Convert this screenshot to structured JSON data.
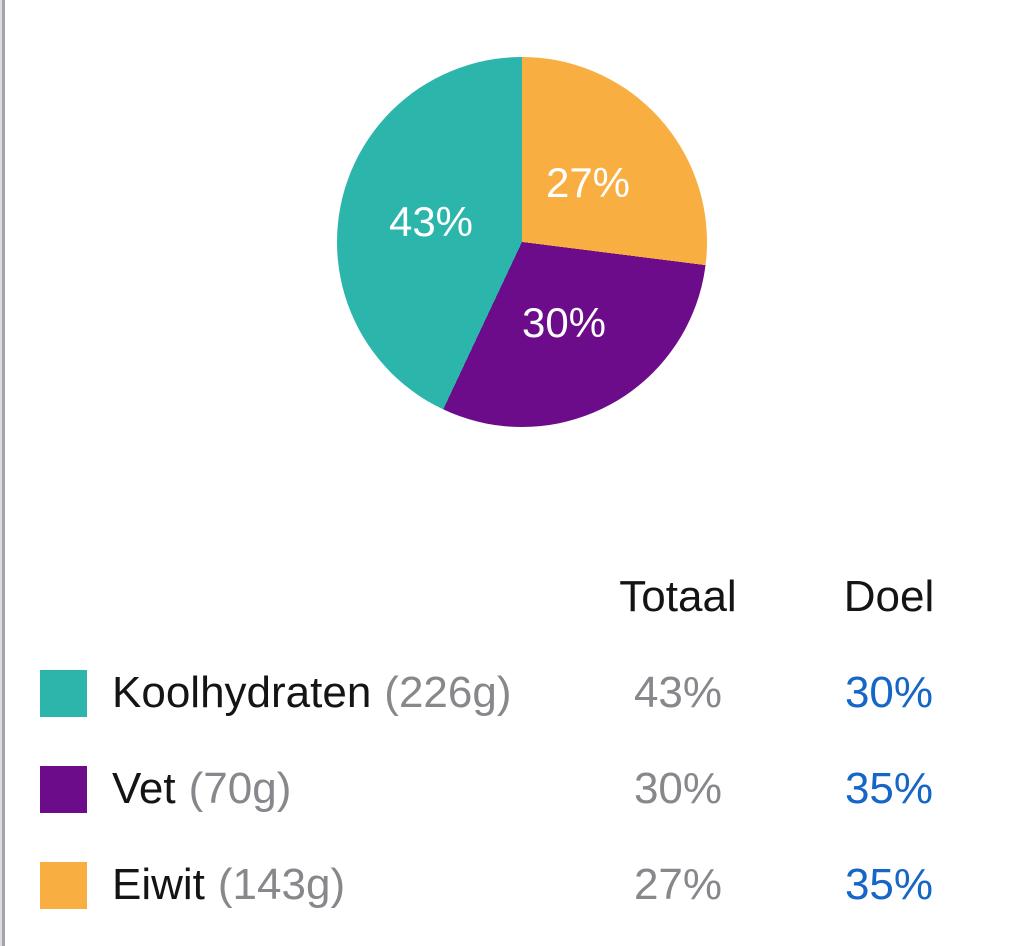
{
  "chart_data": {
    "type": "pie",
    "slice_order": "clockwise-from-12-oclock",
    "slices": [
      {
        "label": "Eiwit",
        "value": 27,
        "display": "27%",
        "color": "#F9AE41"
      },
      {
        "label": "Vet",
        "value": 30,
        "display": "30%",
        "color": "#6D0C8B"
      },
      {
        "label": "Koolhydraten",
        "value": 43,
        "display": "43%",
        "color": "#2BB5AB"
      }
    ],
    "label_text_color": "#FFFFFF",
    "title": "",
    "legend_position": "table-below"
  },
  "table": {
    "header": {
      "total": "Totaal",
      "goal": "Doel"
    },
    "rows": [
      {
        "name": "Koolhydraten",
        "amount": "(226g)",
        "total": "43%",
        "goal": "30%",
        "swatch_color": "#2BB5AB"
      },
      {
        "name": "Vet",
        "amount": "(70g)",
        "total": "30%",
        "goal": "35%",
        "swatch_color": "#6D0C8B"
      },
      {
        "name": "Eiwit",
        "amount": "(143g)",
        "total": "27%",
        "goal": "35%",
        "swatch_color": "#F9AE41"
      }
    ]
  },
  "colors": {
    "goal_link_blue": "#1666C8",
    "muted_text": "#87878C",
    "primary_text": "#141414",
    "background": "#FFFFFF"
  }
}
